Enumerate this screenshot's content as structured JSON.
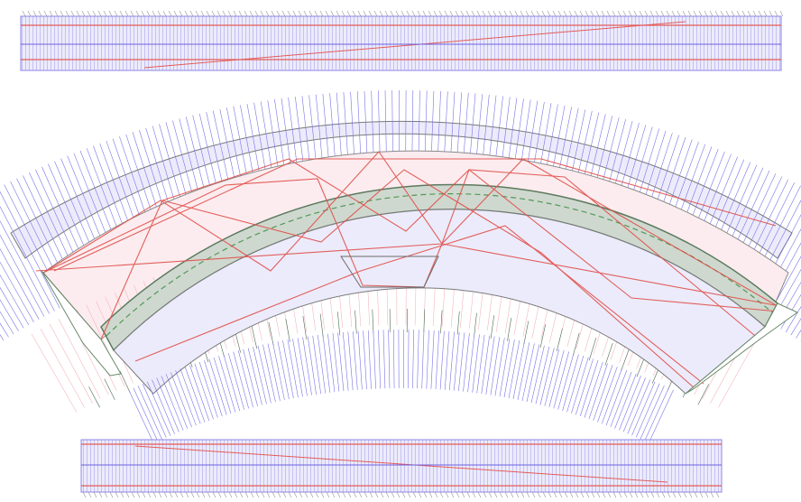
{
  "colors": {
    "background": "#ffffff",
    "blue_lines": "#6b62e0",
    "blue_fill": "#eae8fb",
    "red_lines": "#e0504a",
    "pink_fill": "#fbe9ec",
    "green_lines": "#4f9a56",
    "gray_lines": "#8a8a8a",
    "outline": "#7a7a7a"
  },
  "parts": [
    {
      "name": "top-straight-strip",
      "role": "straight template strip"
    },
    {
      "name": "curved-section-outer-band",
      "role": "outer arc band"
    },
    {
      "name": "curved-section-inner-band",
      "role": "inner arc band"
    },
    {
      "name": "curved-section-center-track",
      "role": "central segmented track"
    },
    {
      "name": "bottom-straight-strip",
      "role": "straight template strip"
    }
  ]
}
